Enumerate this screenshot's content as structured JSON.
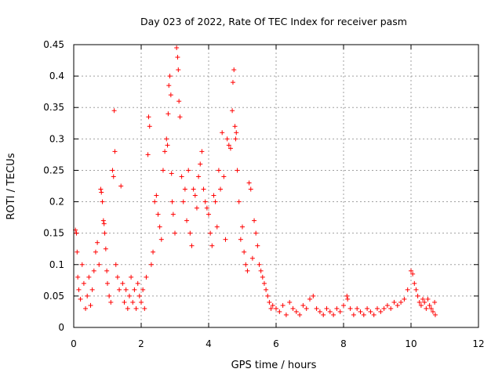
{
  "chart_data": {
    "type": "scatter",
    "title": "Day 023 of 2022, Rate Of TEC Index for receiver pasm",
    "xlabel": "GPS time / hours",
    "ylabel": "ROTI / TECUs",
    "xlim": [
      0,
      12
    ],
    "ylim": [
      0,
      0.45
    ],
    "xticks": [
      0,
      2,
      4,
      6,
      8,
      10,
      12
    ],
    "yticks": [
      0,
      0.05,
      0.1,
      0.15,
      0.2,
      0.25,
      0.3,
      0.35,
      0.4,
      0.45
    ],
    "xtick_labels": [
      "0",
      "2",
      "4",
      "6",
      "8",
      "10",
      "12"
    ],
    "ytick_labels": [
      "0",
      "0.05",
      "0.1",
      "0.15",
      "0.2",
      "0.25",
      "0.3",
      "0.35",
      "0.4",
      "0.45"
    ],
    "grid": true,
    "marker": "+",
    "color": "#ff0000",
    "series": [
      {
        "name": "ROTI",
        "points": [
          [
            0.05,
            0.155
          ],
          [
            0.08,
            0.15
          ],
          [
            0.1,
            0.12
          ],
          [
            0.12,
            0.08
          ],
          [
            0.15,
            0.06
          ],
          [
            0.2,
            0.045
          ],
          [
            0.25,
            0.1
          ],
          [
            0.3,
            0.07
          ],
          [
            0.35,
            0.03
          ],
          [
            0.4,
            0.05
          ],
          [
            0.45,
            0.08
          ],
          [
            0.5,
            0.035
          ],
          [
            0.55,
            0.06
          ],
          [
            0.6,
            0.09
          ],
          [
            0.65,
            0.12
          ],
          [
            0.7,
            0.135
          ],
          [
            0.75,
            0.1
          ],
          [
            0.8,
            0.22
          ],
          [
            0.82,
            0.215
          ],
          [
            0.85,
            0.2
          ],
          [
            0.88,
            0.17
          ],
          [
            0.9,
            0.165
          ],
          [
            0.92,
            0.15
          ],
          [
            0.95,
            0.125
          ],
          [
            0.98,
            0.09
          ],
          [
            1.0,
            0.07
          ],
          [
            1.05,
            0.05
          ],
          [
            1.1,
            0.04
          ],
          [
            1.15,
            0.25
          ],
          [
            1.18,
            0.24
          ],
          [
            1.2,
            0.345
          ],
          [
            1.22,
            0.28
          ],
          [
            1.25,
            0.1
          ],
          [
            1.3,
            0.08
          ],
          [
            1.35,
            0.06
          ],
          [
            1.4,
            0.225
          ],
          [
            1.45,
            0.07
          ],
          [
            1.5,
            0.04
          ],
          [
            1.55,
            0.06
          ],
          [
            1.6,
            0.03
          ],
          [
            1.65,
            0.05
          ],
          [
            1.7,
            0.08
          ],
          [
            1.75,
            0.04
          ],
          [
            1.8,
            0.06
          ],
          [
            1.85,
            0.03
          ],
          [
            1.9,
            0.07
          ],
          [
            1.95,
            0.05
          ],
          [
            2.0,
            0.04
          ],
          [
            2.05,
            0.06
          ],
          [
            2.1,
            0.03
          ],
          [
            2.15,
            0.08
          ],
          [
            2.2,
            0.275
          ],
          [
            2.22,
            0.335
          ],
          [
            2.25,
            0.32
          ],
          [
            2.3,
            0.1
          ],
          [
            2.35,
            0.12
          ],
          [
            2.4,
            0.2
          ],
          [
            2.45,
            0.21
          ],
          [
            2.5,
            0.18
          ],
          [
            2.55,
            0.16
          ],
          [
            2.6,
            0.14
          ],
          [
            2.65,
            0.25
          ],
          [
            2.7,
            0.28
          ],
          [
            2.75,
            0.3
          ],
          [
            2.78,
            0.29
          ],
          [
            2.8,
            0.34
          ],
          [
            2.82,
            0.385
          ],
          [
            2.85,
            0.4
          ],
          [
            2.88,
            0.37
          ],
          [
            2.9,
            0.245
          ],
          [
            2.92,
            0.2
          ],
          [
            2.95,
            0.18
          ],
          [
            3.0,
            0.15
          ],
          [
            3.05,
            0.445
          ],
          [
            3.08,
            0.43
          ],
          [
            3.1,
            0.41
          ],
          [
            3.12,
            0.36
          ],
          [
            3.15,
            0.335
          ],
          [
            3.2,
            0.24
          ],
          [
            3.25,
            0.2
          ],
          [
            3.3,
            0.22
          ],
          [
            3.35,
            0.17
          ],
          [
            3.4,
            0.25
          ],
          [
            3.45,
            0.15
          ],
          [
            3.5,
            0.13
          ],
          [
            3.55,
            0.22
          ],
          [
            3.6,
            0.21
          ],
          [
            3.65,
            0.19
          ],
          [
            3.7,
            0.24
          ],
          [
            3.75,
            0.26
          ],
          [
            3.8,
            0.28
          ],
          [
            3.85,
            0.22
          ],
          [
            3.9,
            0.2
          ],
          [
            3.95,
            0.19
          ],
          [
            4.0,
            0.18
          ],
          [
            4.05,
            0.15
          ],
          [
            4.1,
            0.13
          ],
          [
            4.15,
            0.21
          ],
          [
            4.2,
            0.2
          ],
          [
            4.25,
            0.16
          ],
          [
            4.3,
            0.25
          ],
          [
            4.35,
            0.22
          ],
          [
            4.4,
            0.31
          ],
          [
            4.45,
            0.24
          ],
          [
            4.5,
            0.14
          ],
          [
            4.55,
            0.3
          ],
          [
            4.6,
            0.29
          ],
          [
            4.65,
            0.285
          ],
          [
            4.7,
            0.345
          ],
          [
            4.72,
            0.39
          ],
          [
            4.75,
            0.41
          ],
          [
            4.78,
            0.32
          ],
          [
            4.8,
            0.3
          ],
          [
            4.82,
            0.31
          ],
          [
            4.85,
            0.25
          ],
          [
            4.9,
            0.2
          ],
          [
            4.95,
            0.14
          ],
          [
            5.0,
            0.16
          ],
          [
            5.05,
            0.12
          ],
          [
            5.1,
            0.1
          ],
          [
            5.15,
            0.09
          ],
          [
            5.2,
            0.23
          ],
          [
            5.25,
            0.22
          ],
          [
            5.3,
            0.11
          ],
          [
            5.35,
            0.17
          ],
          [
            5.4,
            0.15
          ],
          [
            5.45,
            0.13
          ],
          [
            5.5,
            0.1
          ],
          [
            5.55,
            0.09
          ],
          [
            5.6,
            0.08
          ],
          [
            5.65,
            0.07
          ],
          [
            5.7,
            0.06
          ],
          [
            5.75,
            0.05
          ],
          [
            5.8,
            0.04
          ],
          [
            5.85,
            0.03
          ],
          [
            5.9,
            0.035
          ],
          [
            6.0,
            0.03
          ],
          [
            6.1,
            0.025
          ],
          [
            6.2,
            0.035
          ],
          [
            6.3,
            0.02
          ],
          [
            6.4,
            0.04
          ],
          [
            6.5,
            0.03
          ],
          [
            6.6,
            0.025
          ],
          [
            6.7,
            0.02
          ],
          [
            6.8,
            0.035
          ],
          [
            6.9,
            0.03
          ],
          [
            7.0,
            0.045
          ],
          [
            7.1,
            0.05
          ],
          [
            7.2,
            0.03
          ],
          [
            7.3,
            0.025
          ],
          [
            7.4,
            0.02
          ],
          [
            7.5,
            0.03
          ],
          [
            7.6,
            0.025
          ],
          [
            7.7,
            0.02
          ],
          [
            7.8,
            0.03
          ],
          [
            7.9,
            0.025
          ],
          [
            8.0,
            0.035
          ],
          [
            8.1,
            0.05
          ],
          [
            8.12,
            0.045
          ],
          [
            8.2,
            0.03
          ],
          [
            8.3,
            0.02
          ],
          [
            8.4,
            0.03
          ],
          [
            8.5,
            0.025
          ],
          [
            8.6,
            0.02
          ],
          [
            8.7,
            0.03
          ],
          [
            8.8,
            0.025
          ],
          [
            8.9,
            0.02
          ],
          [
            9.0,
            0.03
          ],
          [
            9.1,
            0.025
          ],
          [
            9.2,
            0.03
          ],
          [
            9.3,
            0.035
          ],
          [
            9.4,
            0.03
          ],
          [
            9.5,
            0.04
          ],
          [
            9.6,
            0.035
          ],
          [
            9.7,
            0.04
          ],
          [
            9.8,
            0.045
          ],
          [
            9.9,
            0.06
          ],
          [
            10.0,
            0.09
          ],
          [
            10.05,
            0.085
          ],
          [
            10.1,
            0.07
          ],
          [
            10.15,
            0.06
          ],
          [
            10.2,
            0.05
          ],
          [
            10.25,
            0.04
          ],
          [
            10.3,
            0.035
          ],
          [
            10.35,
            0.045
          ],
          [
            10.4,
            0.04
          ],
          [
            10.45,
            0.03
          ],
          [
            10.5,
            0.045
          ],
          [
            10.55,
            0.035
          ],
          [
            10.6,
            0.03
          ],
          [
            10.65,
            0.025
          ],
          [
            10.7,
            0.04
          ],
          [
            10.72,
            0.02
          ]
        ]
      }
    ]
  }
}
